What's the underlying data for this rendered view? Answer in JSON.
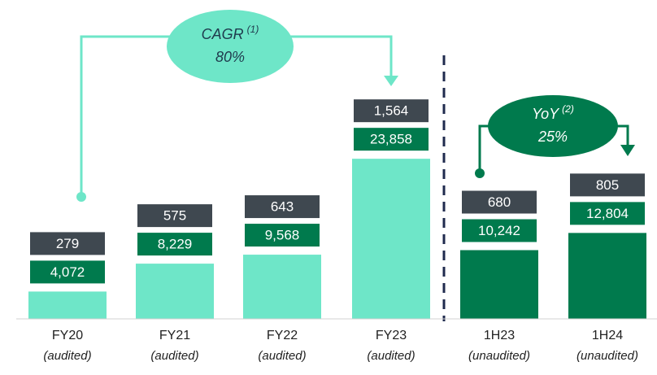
{
  "chart_data": {
    "type": "bar",
    "categories": [
      "FY20",
      "FY21",
      "FY22",
      "FY23",
      "1H23",
      "1H24"
    ],
    "category_notes": [
      "(audited)",
      "(audited)",
      "(audited)",
      "(audited)",
      "(unaudited)",
      "(unaudited)"
    ],
    "values": [
      4072,
      8229,
      9568,
      23858,
      10242,
      12804
    ],
    "value_labels": [
      "4,072",
      "8,229",
      "9,568",
      "23,858",
      "10,242",
      "12,804"
    ],
    "colors": [
      "#6ee6c8",
      "#6ee6c8",
      "#6ee6c8",
      "#6ee6c8",
      "#007a4d",
      "#007a4d"
    ],
    "label_color": "#007a4d",
    "secondary_values": [
      279,
      575,
      643,
      1564,
      680,
      805
    ],
    "secondary_value_labels": [
      "279",
      "575",
      "643",
      "1,564",
      "680",
      "805"
    ],
    "secondary_color": "#3f4850",
    "ylim": [
      0,
      28000
    ],
    "annotations": [
      {
        "label": "CAGR",
        "note": "(1)",
        "value": "80%",
        "color": "#6ee6c8",
        "text_color": "#1f3a4d"
      },
      {
        "label": "YoY",
        "note": "(2)",
        "value": "25%",
        "color": "#007a4d",
        "text_color": "#ffffff"
      }
    ]
  }
}
